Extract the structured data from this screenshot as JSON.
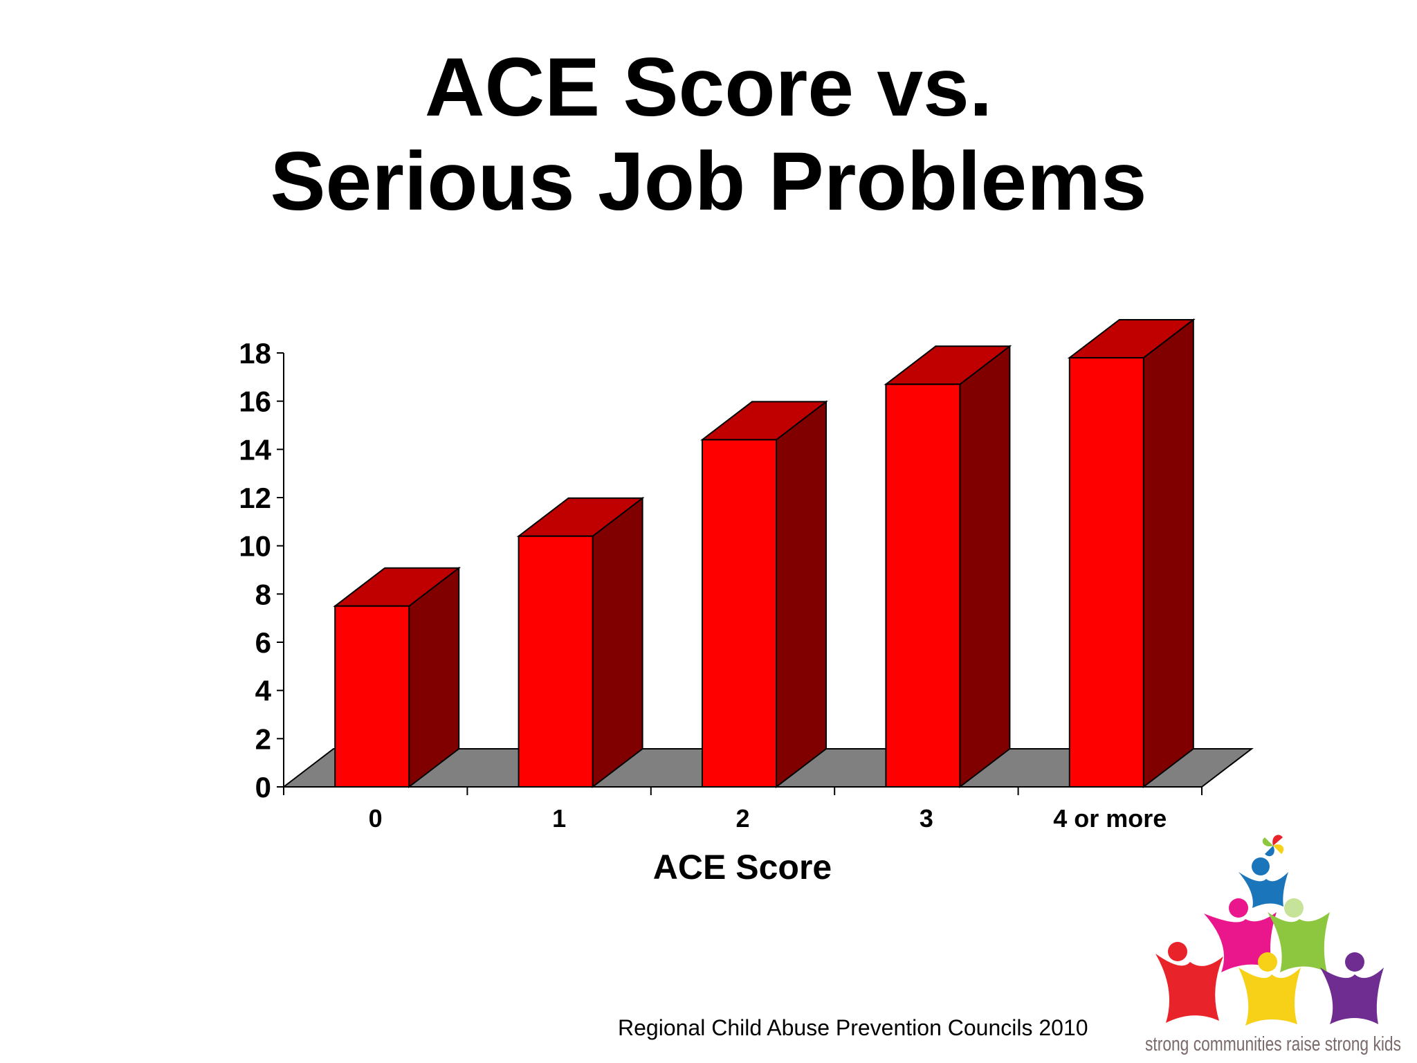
{
  "slide": {
    "title_line1": "ACE Score vs.",
    "title_line2": "Serious Job Problems",
    "footer": "Regional Child Abuse Prevention Councils 2010"
  },
  "logo": {
    "tagline": "strong communities raise strong kids",
    "colors": [
      "#e8232a",
      "#e9168c",
      "#1b75bb",
      "#8dc63f",
      "#f7d117",
      "#6f2c91"
    ]
  },
  "chart_data": {
    "type": "bar",
    "style": "3d",
    "categories": [
      "0",
      "1",
      "2",
      "3",
      "4 or more"
    ],
    "values": [
      7.5,
      10.4,
      14.4,
      16.7,
      17.8
    ],
    "xlabel": "ACE Score",
    "ylabel": "",
    "ylim": [
      0,
      18
    ],
    "yticks": [
      "0",
      "2",
      "4",
      "6",
      "8",
      "10",
      "12",
      "14",
      "16",
      "18"
    ],
    "grid": false,
    "colors": {
      "front": "#ff0000",
      "top": "#c00000",
      "side": "#800000",
      "floor": "#808080"
    }
  }
}
